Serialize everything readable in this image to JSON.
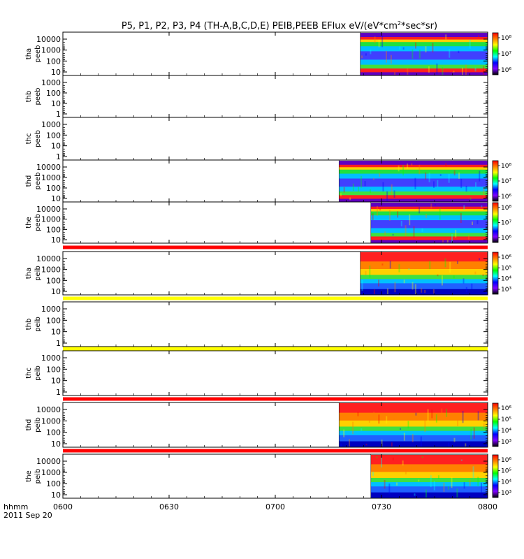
{
  "chart_data": {
    "type": "heatmap",
    "title": "P5, P1, P2, P3, P4 (TH-A,B,C,D,E) PEIB,PEEB EFlux eV/(eV*cm",
    "title_sup": "2",
    "title_suffix": "*sec*sr)",
    "x_axis": {
      "label_line1": "hhmm",
      "label_line2": "2011 Sep 20",
      "ticks": [
        "0600",
        "0630",
        "0700",
        "0730",
        "0800"
      ],
      "tick_minutes": [
        0,
        30,
        60,
        90,
        120
      ],
      "range_minutes": [
        0,
        120
      ]
    },
    "panels": [
      {
        "probe": "tha",
        "instrument": "peeb",
        "data_start_min": 84,
        "type": "electron",
        "yticks": [
          "10000",
          "1000",
          "100",
          "10"
        ],
        "ylim": [
          5,
          30000
        ],
        "colorbar": [
          "10⁸",
          "10⁷",
          "10⁶"
        ],
        "colorbar_min": 10,
        "colorbar_max": 50,
        "has_data": true
      },
      {
        "probe": "thb",
        "instrument": "peeb",
        "data_start_min": null,
        "yticks": [
          "1000",
          "100",
          "10",
          "1"
        ],
        "ylim": [
          1,
          1000
        ],
        "has_data": false
      },
      {
        "probe": "thc",
        "instrument": "peeb",
        "data_start_min": null,
        "yticks": [
          "1000",
          "100",
          "10",
          "1"
        ],
        "ylim": [
          1,
          1000
        ],
        "has_data": false
      },
      {
        "probe": "thd",
        "instrument": "peeb",
        "data_start_min": 78,
        "type": "electron",
        "yticks": [
          "10000",
          "1000",
          "100",
          "10"
        ],
        "ylim": [
          5,
          30000
        ],
        "colorbar": [
          "10⁸",
          "10⁷",
          "10⁶"
        ],
        "has_data": true
      },
      {
        "probe": "the",
        "instrument": "peeb",
        "data_start_min": 87,
        "type": "electron",
        "yticks": [
          "10000",
          "1000",
          "100",
          "10"
        ],
        "ylim": [
          5,
          30000
        ],
        "colorbar": [
          "10⁸",
          "10⁷",
          "10⁶"
        ],
        "has_data": true,
        "flag_bar_below": "#ff0000"
      },
      {
        "probe": "tha",
        "instrument": "peib",
        "data_start_min": 84,
        "type": "ion",
        "yticks": [
          "10000",
          "1000",
          "100",
          "10"
        ],
        "ylim": [
          5,
          30000
        ],
        "colorbar": [
          "10⁶",
          "10⁵",
          "10⁴",
          "10³"
        ],
        "has_data": true,
        "flag_bar_below": "#ffff00"
      },
      {
        "probe": "thb",
        "instrument": "peib",
        "data_start_min": null,
        "yticks": [
          "1000",
          "100",
          "10",
          "1"
        ],
        "ylim": [
          1,
          1000
        ],
        "has_data": false,
        "flag_bar_below": "#ffff00"
      },
      {
        "probe": "thc",
        "instrument": "peib",
        "data_start_min": null,
        "yticks": [
          "1000",
          "100",
          "10",
          "1"
        ],
        "ylim": [
          1,
          1000
        ],
        "has_data": false,
        "flag_bar_below": "#ff0000"
      },
      {
        "probe": "thd",
        "instrument": "peib",
        "data_start_min": 78,
        "type": "ion",
        "yticks": [
          "10000",
          "1000",
          "100",
          "10"
        ],
        "ylim": [
          5,
          30000
        ],
        "colorbar": [
          "10⁶",
          "10⁵",
          "10⁴",
          "10³"
        ],
        "has_data": true,
        "flag_bar_below": "#ff0000"
      },
      {
        "probe": "the",
        "instrument": "peib",
        "data_start_min": 87,
        "type": "ion",
        "yticks": [
          "10000",
          "1000",
          "100",
          "10"
        ],
        "ylim": [
          5,
          30000
        ],
        "colorbar": [
          "10⁶",
          "10⁵",
          "10⁴",
          "10³"
        ],
        "has_data": true
      }
    ]
  }
}
